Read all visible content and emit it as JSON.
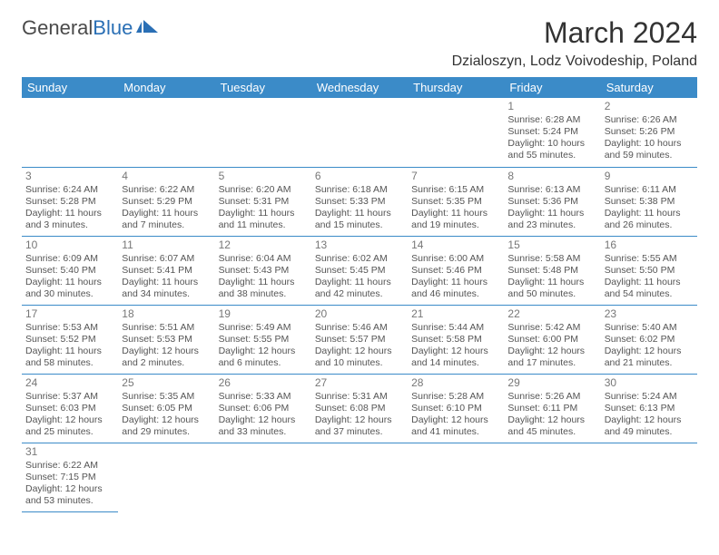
{
  "logo": {
    "text1": "General",
    "text2": "Blue"
  },
  "title": "March 2024",
  "location": "Dzialoszyn, Lodz Voivodeship, Poland",
  "colors": {
    "header_bg": "#3b8bc8",
    "header_text": "#ffffff",
    "border": "#3b8bc8",
    "body_text": "#555555",
    "daynum": "#777777",
    "logo_gray": "#4a4a4a",
    "logo_blue": "#2a6fb5"
  },
  "weekdays": [
    "Sunday",
    "Monday",
    "Tuesday",
    "Wednesday",
    "Thursday",
    "Friday",
    "Saturday"
  ],
  "days": {
    "1": {
      "sunrise": "6:28 AM",
      "sunset": "5:24 PM",
      "daylight": "10 hours and 55 minutes."
    },
    "2": {
      "sunrise": "6:26 AM",
      "sunset": "5:26 PM",
      "daylight": "10 hours and 59 minutes."
    },
    "3": {
      "sunrise": "6:24 AM",
      "sunset": "5:28 PM",
      "daylight": "11 hours and 3 minutes."
    },
    "4": {
      "sunrise": "6:22 AM",
      "sunset": "5:29 PM",
      "daylight": "11 hours and 7 minutes."
    },
    "5": {
      "sunrise": "6:20 AM",
      "sunset": "5:31 PM",
      "daylight": "11 hours and 11 minutes."
    },
    "6": {
      "sunrise": "6:18 AM",
      "sunset": "5:33 PM",
      "daylight": "11 hours and 15 minutes."
    },
    "7": {
      "sunrise": "6:15 AM",
      "sunset": "5:35 PM",
      "daylight": "11 hours and 19 minutes."
    },
    "8": {
      "sunrise": "6:13 AM",
      "sunset": "5:36 PM",
      "daylight": "11 hours and 23 minutes."
    },
    "9": {
      "sunrise": "6:11 AM",
      "sunset": "5:38 PM",
      "daylight": "11 hours and 26 minutes."
    },
    "10": {
      "sunrise": "6:09 AM",
      "sunset": "5:40 PM",
      "daylight": "11 hours and 30 minutes."
    },
    "11": {
      "sunrise": "6:07 AM",
      "sunset": "5:41 PM",
      "daylight": "11 hours and 34 minutes."
    },
    "12": {
      "sunrise": "6:04 AM",
      "sunset": "5:43 PM",
      "daylight": "11 hours and 38 minutes."
    },
    "13": {
      "sunrise": "6:02 AM",
      "sunset": "5:45 PM",
      "daylight": "11 hours and 42 minutes."
    },
    "14": {
      "sunrise": "6:00 AM",
      "sunset": "5:46 PM",
      "daylight": "11 hours and 46 minutes."
    },
    "15": {
      "sunrise": "5:58 AM",
      "sunset": "5:48 PM",
      "daylight": "11 hours and 50 minutes."
    },
    "16": {
      "sunrise": "5:55 AM",
      "sunset": "5:50 PM",
      "daylight": "11 hours and 54 minutes."
    },
    "17": {
      "sunrise": "5:53 AM",
      "sunset": "5:52 PM",
      "daylight": "11 hours and 58 minutes."
    },
    "18": {
      "sunrise": "5:51 AM",
      "sunset": "5:53 PM",
      "daylight": "12 hours and 2 minutes."
    },
    "19": {
      "sunrise": "5:49 AM",
      "sunset": "5:55 PM",
      "daylight": "12 hours and 6 minutes."
    },
    "20": {
      "sunrise": "5:46 AM",
      "sunset": "5:57 PM",
      "daylight": "12 hours and 10 minutes."
    },
    "21": {
      "sunrise": "5:44 AM",
      "sunset": "5:58 PM",
      "daylight": "12 hours and 14 minutes."
    },
    "22": {
      "sunrise": "5:42 AM",
      "sunset": "6:00 PM",
      "daylight": "12 hours and 17 minutes."
    },
    "23": {
      "sunrise": "5:40 AM",
      "sunset": "6:02 PM",
      "daylight": "12 hours and 21 minutes."
    },
    "24": {
      "sunrise": "5:37 AM",
      "sunset": "6:03 PM",
      "daylight": "12 hours and 25 minutes."
    },
    "25": {
      "sunrise": "5:35 AM",
      "sunset": "6:05 PM",
      "daylight": "12 hours and 29 minutes."
    },
    "26": {
      "sunrise": "5:33 AM",
      "sunset": "6:06 PM",
      "daylight": "12 hours and 33 minutes."
    },
    "27": {
      "sunrise": "5:31 AM",
      "sunset": "6:08 PM",
      "daylight": "12 hours and 37 minutes."
    },
    "28": {
      "sunrise": "5:28 AM",
      "sunset": "6:10 PM",
      "daylight": "12 hours and 41 minutes."
    },
    "29": {
      "sunrise": "5:26 AM",
      "sunset": "6:11 PM",
      "daylight": "12 hours and 45 minutes."
    },
    "30": {
      "sunrise": "5:24 AM",
      "sunset": "6:13 PM",
      "daylight": "12 hours and 49 minutes."
    },
    "31": {
      "sunrise": "6:22 AM",
      "sunset": "7:15 PM",
      "daylight": "12 hours and 53 minutes."
    }
  },
  "labels": {
    "sunrise": "Sunrise: ",
    "sunset": "Sunset: ",
    "daylight": "Daylight: "
  },
  "grid": [
    [
      null,
      null,
      null,
      null,
      null,
      "1",
      "2"
    ],
    [
      "3",
      "4",
      "5",
      "6",
      "7",
      "8",
      "9"
    ],
    [
      "10",
      "11",
      "12",
      "13",
      "14",
      "15",
      "16"
    ],
    [
      "17",
      "18",
      "19",
      "20",
      "21",
      "22",
      "23"
    ],
    [
      "24",
      "25",
      "26",
      "27",
      "28",
      "29",
      "30"
    ],
    [
      "31",
      null,
      null,
      null,
      null,
      null,
      null
    ]
  ]
}
